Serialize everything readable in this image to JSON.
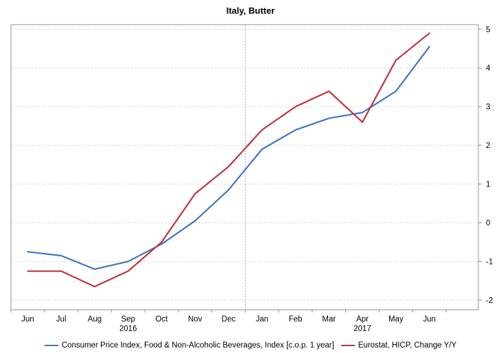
{
  "chart_data": {
    "type": "line",
    "title": "Italy, Butter",
    "categories": [
      "Jun",
      "Jul",
      "Aug",
      "Sep",
      "Oct",
      "Nov",
      "Dec",
      "Jan",
      "Feb",
      "Mar",
      "Apr",
      "May",
      "Jun"
    ],
    "year_labels": [
      {
        "index": 3,
        "label": "2016"
      },
      {
        "index": 10,
        "label": "2017"
      }
    ],
    "year_separator_index": 7,
    "series": [
      {
        "name": "Consumer Price Index, Food & Non-Alcoholic Beverages, Index [c.o.p. 1 year]",
        "color": "#4176bd",
        "values": [
          -0.75,
          -0.85,
          -1.2,
          -1.0,
          -0.55,
          0.05,
          0.85,
          1.9,
          2.4,
          2.7,
          2.85,
          3.4,
          4.55
        ]
      },
      {
        "name": "Eurostat, HICP, Change Y/Y",
        "color": "#c0333b",
        "values": [
          -1.25,
          -1.25,
          -1.65,
          -1.25,
          -0.5,
          0.75,
          1.45,
          2.4,
          3.0,
          3.4,
          2.6,
          4.2,
          4.9
        ]
      }
    ],
    "y_axis": {
      "side": "right",
      "ticks": [
        -2,
        -1,
        0,
        1,
        2,
        3,
        4,
        5
      ],
      "range": [
        -2.25,
        5.12
      ]
    },
    "xlabel": "",
    "ylabel": "",
    "grid": "horizontal-dotted",
    "legend_position": "bottom",
    "frame_color": "#a3a3a3",
    "grid_color": "#c9c9c9",
    "tick_color": "#8c8c8c",
    "text_color": "#000000"
  }
}
